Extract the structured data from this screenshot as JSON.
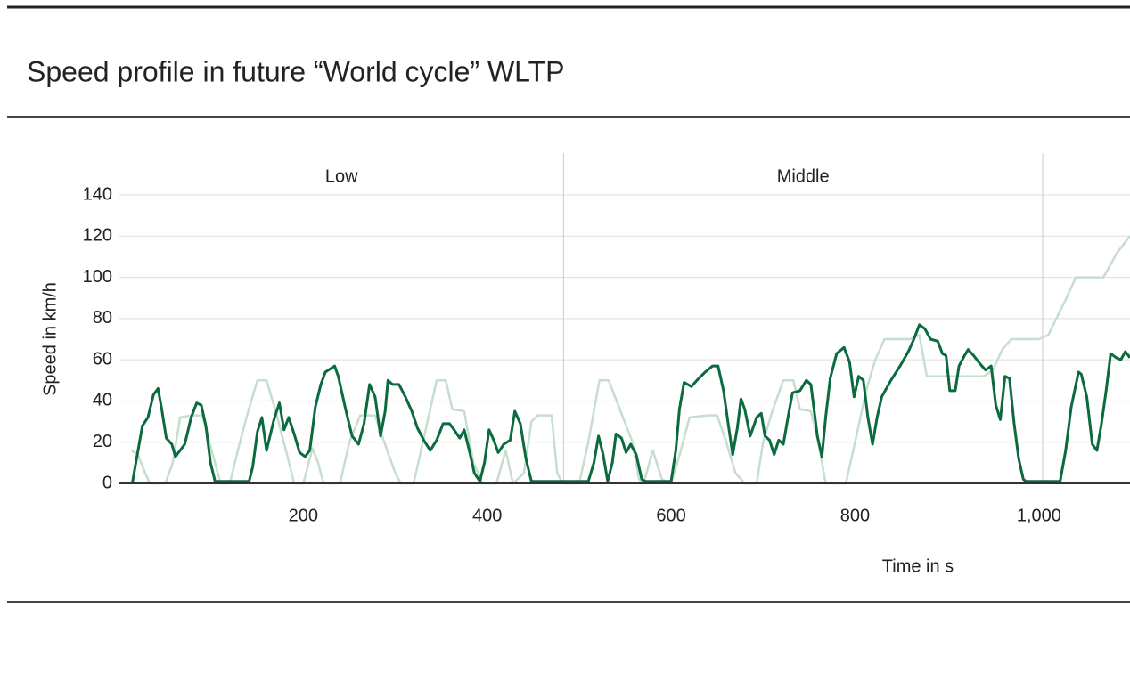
{
  "chart_data": {
    "type": "line",
    "title": "Speed profile in future “World cycle” WLTP",
    "y_label": "Speed in km/h",
    "x_label": "Time in s",
    "xlim": [
      0,
      1099
    ],
    "ylim": [
      0,
      140
    ],
    "xticks": [
      200,
      400,
      600,
      800,
      {
        "value": 1000,
        "label": "1,000"
      }
    ],
    "yticks": [
      0,
      20,
      40,
      60,
      80,
      100,
      120,
      140
    ],
    "grid": true,
    "phase_bounds": [
      483,
      1004
    ],
    "phase_labels": [
      "Low",
      "Middle"
    ],
    "series": [
      {
        "color": "#c6ddd0",
        "x": [
          13,
          20,
          28,
          33,
          50,
          58,
          66,
          78,
          90,
          104,
          110,
          120,
          130,
          140,
          150,
          160,
          170,
          180,
          190,
          200,
          210,
          216,
          222,
          240,
          250,
          262,
          278,
          292,
          300,
          306,
          320,
          330,
          345,
          355,
          362,
          375,
          385,
          395,
          410,
          420,
          428,
          440,
          448,
          455,
          470,
          476,
          482,
          500,
          510,
          522,
          532,
          545,
          558,
          565,
          570,
          580,
          590,
          600,
          610,
          620,
          640,
          650,
          660,
          670,
          680,
          693,
          700,
          710,
          722,
          733,
          740,
          752,
          760,
          768,
          790,
          800,
          812,
          822,
          832,
          860,
          870,
          878,
          900,
          940,
          950,
          960,
          970,
          1000,
          1010,
          1030,
          1040,
          1070,
          1085,
          1099
        ],
        "values": [
          16,
          14,
          5,
          0,
          0,
          10,
          32,
          33,
          33,
          10,
          0,
          0,
          18,
          35,
          50,
          50,
          35,
          18,
          0,
          0,
          17,
          10,
          0,
          0,
          20,
          33,
          33,
          15,
          5,
          0,
          0,
          20,
          50,
          50,
          36,
          35,
          10,
          0,
          0,
          16,
          0,
          5,
          30,
          33,
          33,
          5,
          0,
          0,
          20,
          50,
          50,
          35,
          20,
          2,
          0,
          16,
          2,
          0,
          15,
          32,
          33,
          33,
          20,
          5,
          0,
          0,
          20,
          35,
          50,
          50,
          36,
          35,
          20,
          0,
          0,
          20,
          45,
          60,
          70,
          70,
          72,
          52,
          52,
          52,
          55,
          65,
          70,
          70,
          72,
          90,
          100,
          100,
          112,
          120
        ]
      },
      {
        "color": "#0b6a3e",
        "x": [
          14,
          25,
          31,
          37,
          42,
          46,
          51,
          57,
          61,
          71,
          78,
          84,
          89,
          94,
          99,
          104,
          109,
          141,
          145,
          150,
          155,
          160,
          168,
          174,
          179,
          184,
          190,
          196,
          202,
          207,
          213,
          219,
          224,
          234,
          238,
          246,
          253,
          260,
          266,
          272,
          278,
          284,
          289,
          292,
          297,
          304,
          311,
          318,
          324,
          331,
          338,
          345,
          352,
          359,
          364,
          370,
          375,
          381,
          386,
          392,
          397,
          402,
          407,
          412,
          418,
          425,
          430,
          436,
          442,
          448,
          510,
          516,
          521,
          526,
          531,
          536,
          540,
          546,
          551,
          556,
          562,
          568,
          572,
          600,
          605,
          609,
          614,
          622,
          630,
          637,
          645,
          651,
          657,
          662,
          667,
          672,
          676,
          680,
          686,
          693,
          698,
          702,
          707,
          712,
          717,
          722,
          727,
          732,
          740,
          747,
          752,
          759,
          764,
          768,
          773,
          780,
          788,
          794,
          799,
          804,
          809,
          814,
          819,
          824,
          829,
          839,
          849,
          858,
          864,
          870,
          876,
          882,
          890,
          895,
          899,
          903,
          909,
          913,
          919,
          923,
          929,
          936,
          942,
          948,
          953,
          958,
          963,
          968,
          973,
          978,
          983,
          986,
          1023,
          1029,
          1035,
          1043,
          1046,
          1052,
          1058,
          1063,
          1068,
          1073,
          1078,
          1084,
          1089,
          1094,
          1099
        ],
        "values": [
          0,
          28,
          32,
          43,
          46,
          36,
          22,
          19,
          13,
          19,
          32,
          39,
          38,
          28,
          10,
          1,
          1,
          1,
          8,
          25,
          32,
          16,
          31,
          39,
          26,
          32,
          24,
          15,
          13,
          16,
          37,
          48,
          54,
          57,
          52,
          36,
          23,
          19,
          29,
          48,
          42,
          23,
          35,
          50,
          48,
          48,
          42,
          35,
          27,
          21,
          16,
          21,
          29,
          29,
          26,
          22,
          26,
          15,
          5,
          1,
          10,
          26,
          21,
          15,
          19,
          21,
          35,
          29,
          12,
          1,
          1,
          10,
          23,
          14,
          1,
          10,
          24,
          22,
          15,
          19,
          14,
          2,
          1,
          1,
          16,
          36,
          49,
          47,
          51,
          54,
          57,
          57,
          45,
          29,
          14,
          27,
          41,
          36,
          23,
          32,
          34,
          23,
          21,
          14,
          21,
          19,
          32,
          44,
          45,
          50,
          48,
          23,
          13,
          32,
          51,
          63,
          66,
          59,
          42,
          52,
          50,
          32,
          19,
          32,
          42,
          50,
          57,
          64,
          70,
          77,
          75,
          70,
          69,
          63,
          62,
          45,
          45,
          57,
          62,
          65,
          62,
          58,
          55,
          57,
          38,
          31,
          52,
          51,
          29,
          12,
          2,
          1,
          1,
          16,
          37,
          54,
          53,
          42,
          19,
          16,
          29,
          45,
          63,
          61,
          60,
          64,
          61
        ]
      }
    ]
  }
}
